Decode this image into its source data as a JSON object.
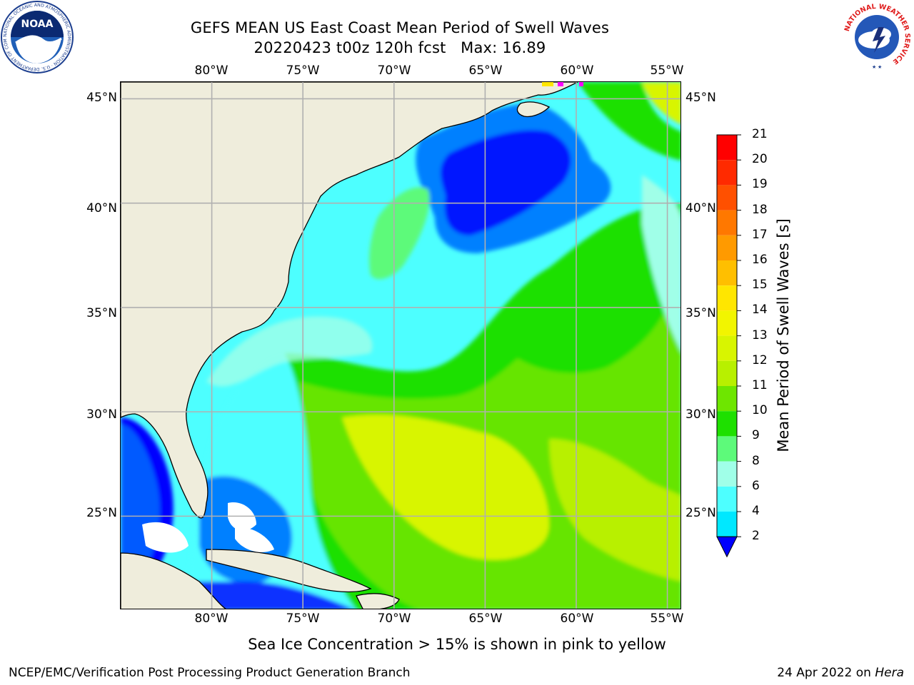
{
  "title": {
    "line1": "GEFS MEAN US East Coast Mean Period of Swell Waves",
    "line2": "20220423 t00z 120h fcst   Max: 16.89"
  },
  "map": {
    "longitude_labels": [
      "80°W",
      "75°W",
      "70°W",
      "65°W",
      "60°W",
      "55°W"
    ],
    "latitude_labels": [
      "45°N",
      "40°N",
      "35°N",
      "30°N",
      "25°N"
    ],
    "extent": {
      "lon_min": -85,
      "lon_max": -54.2,
      "lat_min": 20.5,
      "lat_max": 45.8
    },
    "land_color": "#efeddc",
    "gridline_color": "#b0b0b0"
  },
  "colorbar": {
    "title": "Mean Period of Swell Waves [s]",
    "levels": [
      "21",
      "20",
      "19",
      "18",
      "17",
      "16",
      "15",
      "14",
      "13",
      "12",
      "11",
      "10",
      "9",
      "8",
      "6",
      "4",
      "2"
    ],
    "colors": [
      "#ff0000",
      "#ff2a00",
      "#ff5000",
      "#ff7800",
      "#ff9a00",
      "#ffbf00",
      "#ffe600",
      "#f2f500",
      "#d8f500",
      "#b8f000",
      "#6ee600",
      "#1ee000",
      "#5dfa7a",
      "#a0ffe8",
      "#4dffff",
      "#00e8ff",
      "#0080ff",
      "#0000ff"
    ],
    "extend": "min"
  },
  "footer": {
    "note": "Sea Ice Concentration > 15% is shown in pink to yellow",
    "credit_left": "NCEP/EMC/Verification Post Processing Product Generation Branch",
    "credit_date": "24 Apr 2022 on ",
    "credit_host": "Hera"
  },
  "logos": {
    "left": {
      "icon": "noaa-logo",
      "text": "NOAA",
      "ring_text": "NATIONAL OCEANIC AND ATMOSPHERIC ADMINISTRATION · U.S. DEPARTMENT OF COMMERCE"
    },
    "right": {
      "icon": "nws-logo",
      "ring_text": "NATIONAL WEATHER SERVICE"
    }
  }
}
